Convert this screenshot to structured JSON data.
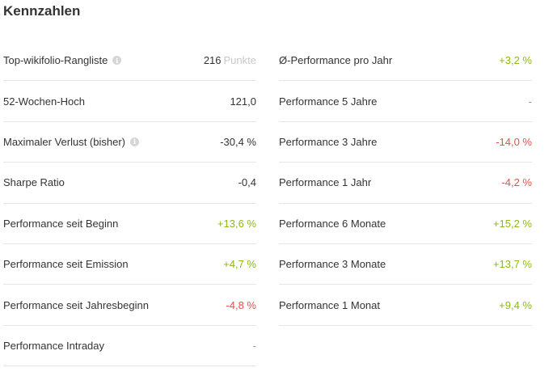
{
  "header": {
    "title": "Kennzahlen"
  },
  "left": [
    {
      "label": "Top-wikifolio-Rangliste",
      "info": true,
      "value": "216",
      "unit": "Punkte",
      "tone": "neutral"
    },
    {
      "label": "52-Wochen-Hoch",
      "info": false,
      "value": "121,0",
      "tone": "neutral"
    },
    {
      "label": "Maximaler Verlust (bisher)",
      "info": true,
      "value": "-30,4 %",
      "tone": "neutral"
    },
    {
      "label": "Sharpe Ratio",
      "info": false,
      "value": "-0,4",
      "tone": "neutral"
    },
    {
      "label": "Performance seit Beginn",
      "info": false,
      "value": "+13,6 %",
      "tone": "pos"
    },
    {
      "label": "Performance seit Emission",
      "info": false,
      "value": "+4,7 %",
      "tone": "pos"
    },
    {
      "label": "Performance seit Jahresbeginn",
      "info": false,
      "value": "-4,8 %",
      "tone": "neg"
    },
    {
      "label": "Performance Intraday",
      "info": false,
      "value": "-",
      "tone": "dash"
    }
  ],
  "right": [
    {
      "label": "Ø-Performance pro Jahr",
      "value": "+3,2 %",
      "tone": "pos"
    },
    {
      "label": "Performance 5 Jahre",
      "value": "-",
      "tone": "dash"
    },
    {
      "label": "Performance 3 Jahre",
      "value": "-14,0 %",
      "tone": "neg"
    },
    {
      "label": "Performance 1 Jahr",
      "value": "-4,2 %",
      "tone": "neg"
    },
    {
      "label": "Performance 6 Monate",
      "value": "+15,2 %",
      "tone": "pos"
    },
    {
      "label": "Performance 3 Monate",
      "value": "+13,7 %",
      "tone": "pos"
    },
    {
      "label": "Performance 1 Monat",
      "value": "+9,4 %",
      "tone": "pos"
    }
  ],
  "colors": {
    "positive": "#8cb919",
    "negative": "#e74c4c",
    "text": "#333333",
    "divider": "#e6e6e6"
  },
  "icons": {
    "info": "info-icon"
  }
}
